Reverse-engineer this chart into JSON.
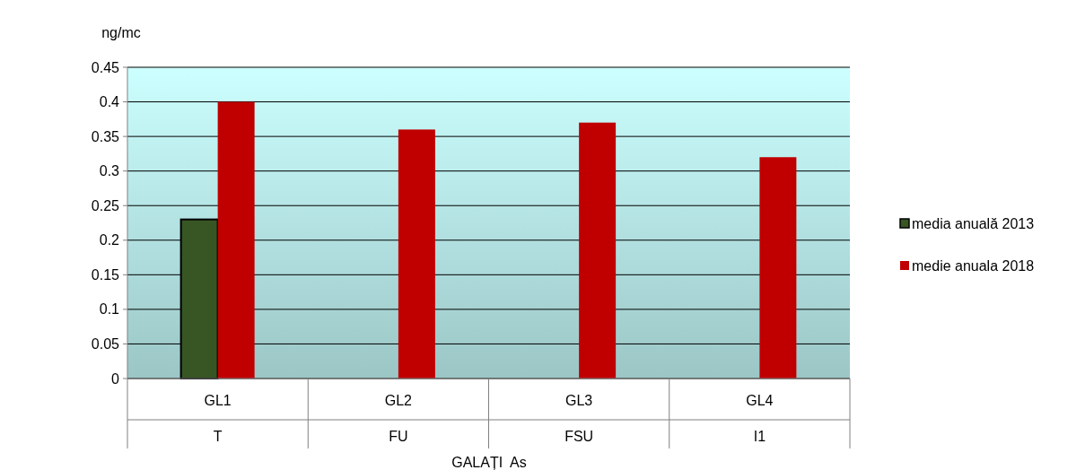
{
  "chart_data": {
    "type": "bar",
    "ylabel": "ng/mc",
    "xlabel": "GALAȚI  As",
    "categories": [
      "GL1\nT",
      "GL2\nFU",
      "GL3\nFSU",
      "GL4\nI1"
    ],
    "series": [
      {
        "name": "media anuală 2013",
        "color": "#375623",
        "values": [
          0.23,
          null,
          null,
          null
        ]
      },
      {
        "name": "medie anuala 2018",
        "color": "#c00000",
        "values": [
          0.4,
          0.36,
          0.37,
          0.32
        ]
      }
    ],
    "ylim": [
      0,
      0.45
    ],
    "yticks": [
      0,
      0.05,
      0.1,
      0.15,
      0.2,
      0.25,
      0.3,
      0.35,
      0.4,
      0.45
    ],
    "grid": "y",
    "legend": "right"
  }
}
